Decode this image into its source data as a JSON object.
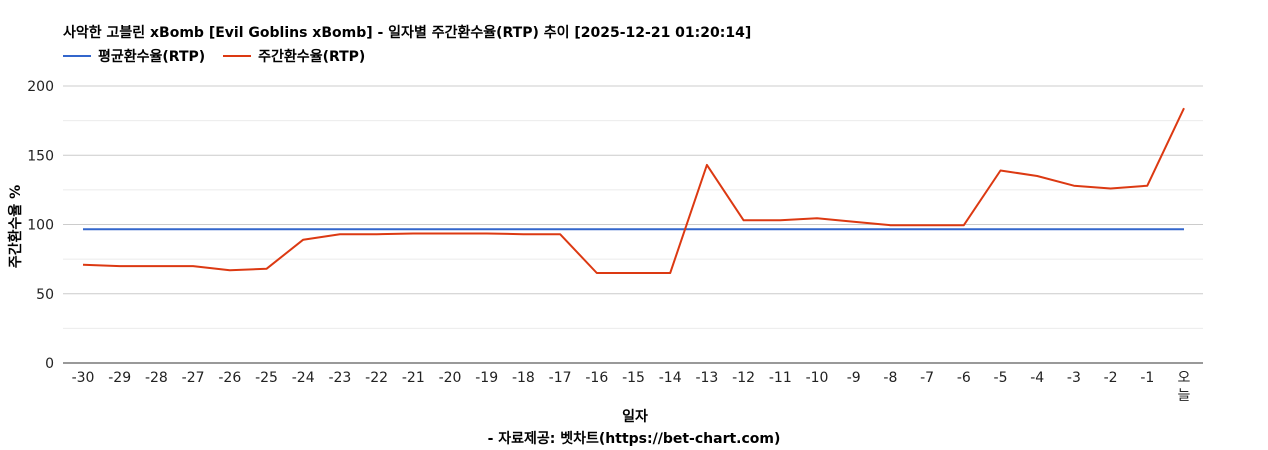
{
  "chart_data": {
    "type": "line",
    "title": "사악한 고블린 xBomb [Evil Goblins xBomb] - 일자별 주간환수율(RTP) 추이 [2025-12-21 01:20:14]",
    "xlabel": "일자",
    "ylabel": "주간환수율 %",
    "source": "- 자료제공: 벳차트(https://bet-chart.com)",
    "ylim": [
      0,
      200
    ],
    "yticks": [
      "0",
      "50",
      "100",
      "150",
      "200"
    ],
    "grid": true,
    "legend_position": "top-left",
    "categories": [
      "-30",
      "-29",
      "-28",
      "-27",
      "-26",
      "-25",
      "-24",
      "-23",
      "-22",
      "-21",
      "-20",
      "-19",
      "-18",
      "-17",
      "-16",
      "-15",
      "-14",
      "-13",
      "-12",
      "-11",
      "-10",
      "-9",
      "-8",
      "-7",
      "-6",
      "-5",
      "-4",
      "-3",
      "-2",
      "-1",
      "오늘"
    ],
    "series": [
      {
        "name": "평균환수율(RTP)",
        "color": "#3366cc",
        "values": [
          96.5,
          96.5,
          96.5,
          96.5,
          96.5,
          96.5,
          96.5,
          96.5,
          96.5,
          96.5,
          96.5,
          96.5,
          96.5,
          96.5,
          96.5,
          96.5,
          96.5,
          96.5,
          96.5,
          96.5,
          96.5,
          96.5,
          96.5,
          96.5,
          96.5,
          96.5,
          96.5,
          96.5,
          96.5,
          96.5,
          96.5
        ]
      },
      {
        "name": "주간환수율(RTP)",
        "color": "#dc3912",
        "values": [
          71,
          70,
          70,
          70,
          67,
          68,
          89,
          93,
          93,
          93.5,
          93.5,
          93.5,
          93,
          93,
          65,
          65,
          65,
          143,
          103,
          103,
          104.5,
          102,
          99.5,
          99.5,
          99.5,
          139,
          135,
          128,
          126,
          128,
          184
        ]
      }
    ]
  }
}
